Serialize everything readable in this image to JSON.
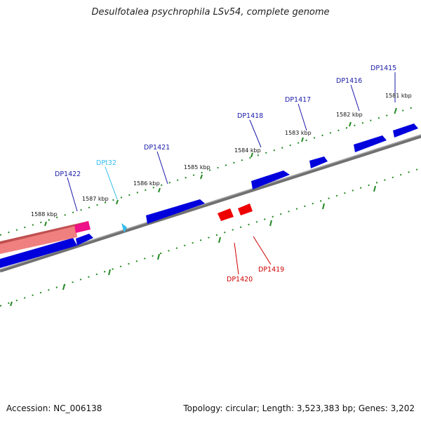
{
  "title": "Desulfotalea psychrophila LSv54, complete genome",
  "footer": {
    "accession": "Accession: NC_006138",
    "summary": "Topology: circular; Length: 3,523,383 bp; Genes: 3,202"
  },
  "colors": {
    "forward_gene": "#0000dd",
    "reverse_gene": "#ee0000",
    "trna": "#33bbee",
    "highlight": "#ee1188",
    "highlight_fill": "#f08080",
    "backbone": "#808080",
    "ticks": "#228822",
    "label_forward": "#1a1aa8",
    "label_reverse": "#cc0000",
    "label_trna": "#33bbee"
  },
  "scale_labels": [
    "1581 kbp",
    "1582 kbp",
    "1583 kbp",
    "1584 kbp",
    "1585 kbp",
    "1586 kbp",
    "1587 kbp",
    "1588 kbp"
  ],
  "genes": [
    {
      "id": "DP1415",
      "strand": "forward",
      "color_key": "label_forward"
    },
    {
      "id": "DP1416",
      "strand": "forward",
      "color_key": "label_forward"
    },
    {
      "id": "DP1417",
      "strand": "forward",
      "color_key": "label_forward"
    },
    {
      "id": "DP1418",
      "strand": "forward",
      "color_key": "label_forward"
    },
    {
      "id": "DP1419",
      "strand": "reverse",
      "color_key": "label_reverse"
    },
    {
      "id": "DP1420",
      "strand": "reverse",
      "color_key": "label_reverse"
    },
    {
      "id": "DP1421",
      "strand": "forward",
      "color_key": "label_forward"
    },
    {
      "id": "DPt32",
      "strand": "forward",
      "color_key": "label_trna"
    },
    {
      "id": "DP1422",
      "strand": "forward",
      "color_key": "label_forward"
    }
  ]
}
